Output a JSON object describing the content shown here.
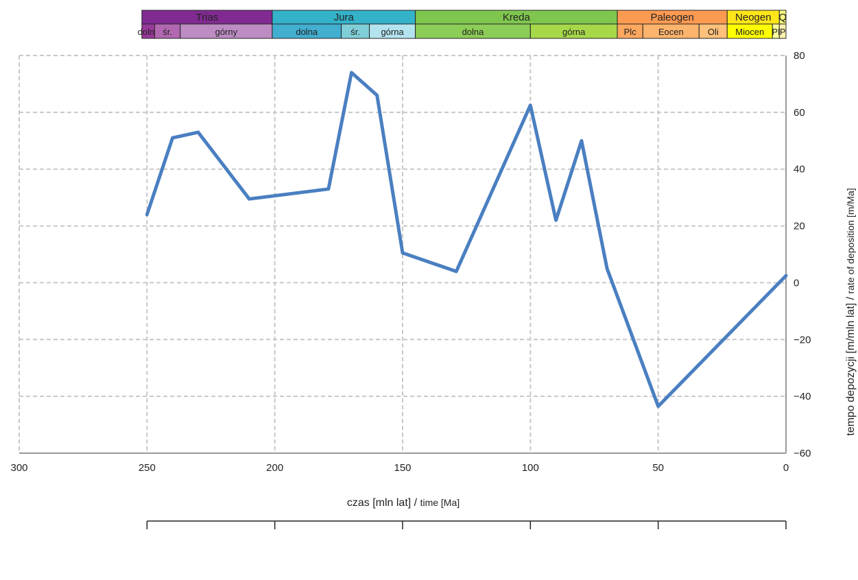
{
  "chart_data": {
    "type": "line",
    "xlabel_main": "czas [mln lat] / ",
    "xlabel_small": "time [Ma]",
    "ylabel_main": "tempo depozycji [m/mln lat] / ",
    "ylabel_small": "rate of deposition [m/Ma]",
    "xlim": [
      300,
      0
    ],
    "ylim": [
      -60,
      80
    ],
    "x_ticks": [
      300,
      250,
      200,
      150,
      100,
      50,
      0
    ],
    "y_ticks": [
      80,
      60,
      40,
      20,
      0,
      -20,
      -40,
      -60
    ],
    "y_tick_labels": [
      "80",
      "60",
      "40",
      "20",
      "0",
      "−20",
      "−40",
      "−60"
    ],
    "grid": true,
    "series": [
      {
        "color": "#4a7fc1",
        "x": [
          250,
          240,
          230,
          210,
          179,
          170,
          160,
          150,
          129,
          100,
          90,
          80,
          70,
          50,
          0
        ],
        "y": [
          24,
          51,
          53,
          29.5,
          33,
          74,
          66,
          10.5,
          4,
          62.5,
          22,
          50,
          5,
          -43.5,
          2.5
        ]
      }
    ],
    "timescale": {
      "periods": [
        {
          "name": "Trias",
          "start": 252,
          "end": 201,
          "color": "#812b92"
        },
        {
          "name": "Jura",
          "start": 201,
          "end": 145,
          "color": "#34b2c9"
        },
        {
          "name": "Kreda",
          "start": 145,
          "end": 66,
          "color": "#7fc64e"
        },
        {
          "name": "Paleogen",
          "start": 66,
          "end": 23,
          "color": "#fd9a52"
        },
        {
          "name": "Neogen",
          "start": 23,
          "end": 2.6,
          "color": "#ffe619"
        },
        {
          "name": "Q",
          "start": 2.6,
          "end": 0,
          "color": "#f9f97f"
        }
      ],
      "epochs": [
        {
          "name": "dolny",
          "start": 252,
          "end": 247,
          "color": "#983999"
        },
        {
          "name": "śr.",
          "start": 247,
          "end": 237,
          "color": "#b168b1"
        },
        {
          "name": "górny",
          "start": 237,
          "end": 201,
          "color": "#bd8cc3"
        },
        {
          "name": "dolna",
          "start": 201,
          "end": 174,
          "color": "#42aed0"
        },
        {
          "name": "śr.",
          "start": 174,
          "end": 163,
          "color": "#80cfd8"
        },
        {
          "name": "górna",
          "start": 163,
          "end": 145,
          "color": "#b3e3ee"
        },
        {
          "name": "dolna",
          "start": 145,
          "end": 100,
          "color": "#8ccd57"
        },
        {
          "name": "górna",
          "start": 100,
          "end": 66,
          "color": "#a6d84a"
        },
        {
          "name": "Plc",
          "start": 66,
          "end": 56,
          "color": "#fda75f"
        },
        {
          "name": "Eocen",
          "start": 56,
          "end": 34,
          "color": "#fdb46c"
        },
        {
          "name": "Oli",
          "start": 34,
          "end": 23,
          "color": "#fec07a"
        },
        {
          "name": "Miocen",
          "start": 23,
          "end": 5.3,
          "color": "#ffff00"
        },
        {
          "name": "Pl",
          "start": 5.3,
          "end": 2.6,
          "color": "#ffff99"
        },
        {
          "name": "P",
          "start": 2.6,
          "end": 0,
          "color": "#fff2ae"
        }
      ]
    }
  }
}
